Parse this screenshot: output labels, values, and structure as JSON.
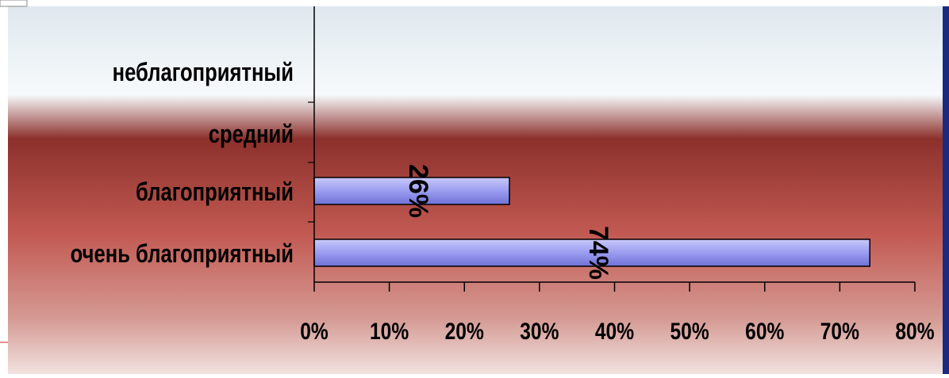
{
  "chart_data": {
    "type": "bar",
    "orientation": "horizontal",
    "categories": [
      "неблагоприятный",
      "средний",
      "благоприятный",
      "очень благоприятный"
    ],
    "values": [
      0,
      0,
      26,
      74
    ],
    "data_labels": [
      "",
      "",
      "26%",
      "74%"
    ],
    "x_ticks": [
      "0%",
      "10%",
      "20%",
      "30%",
      "40%",
      "50%",
      "60%",
      "70%",
      "80%"
    ],
    "xlim": [
      0,
      80
    ],
    "grid": false,
    "legend": "none",
    "colors": {
      "bar_fill": "#9a9cf0",
      "bar_stroke": "#000000",
      "background_top": "#dfe8ee",
      "background_middle": "#8c302c",
      "background_bottom": "#f1e2df",
      "frame": "#1a2a80",
      "text": "#000000"
    }
  }
}
